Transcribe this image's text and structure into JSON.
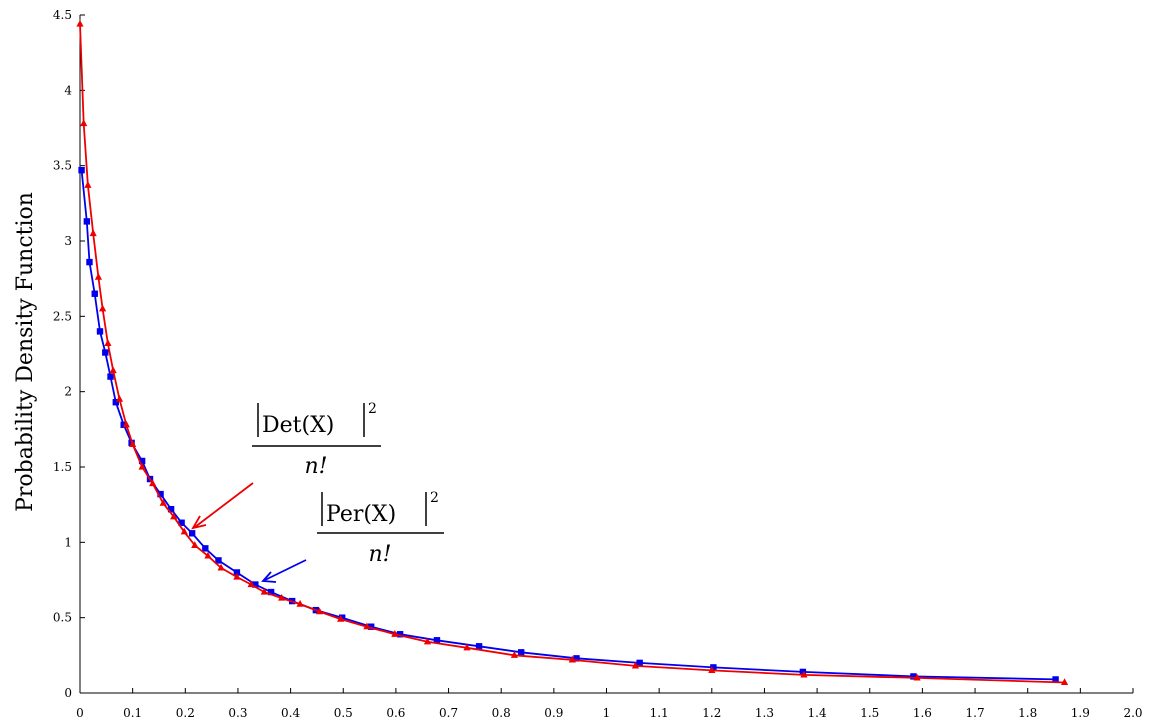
{
  "chart_data": {
    "type": "line",
    "title": "",
    "xlabel": "",
    "ylabel": "Probability Density Function",
    "xlim": [
      0,
      2.0
    ],
    "ylim": [
      0,
      4.5
    ],
    "xticks": [
      "0",
      "0.1",
      "0.2",
      "0.3",
      "0.4",
      "0.5",
      "0.6",
      "0.7",
      "0.8",
      "0.9",
      "1",
      "1.1",
      "1.2",
      "1.3",
      "1.4",
      "1.5",
      "1.6",
      "1.7",
      "1.8",
      "1.9",
      "2.0"
    ],
    "yticks": [
      "0",
      "0.5",
      "1",
      "1.5",
      "2",
      "2.5",
      "3",
      "3.5",
      "4",
      "4.5"
    ],
    "grid": false,
    "series": [
      {
        "name": "|Per(X)|^2 / n!",
        "color": "#0000ee",
        "marker": "square",
        "x": [
          0.003,
          0.013,
          0.018,
          0.028,
          0.038,
          0.048,
          0.058,
          0.068,
          0.083,
          0.098,
          0.118,
          0.133,
          0.153,
          0.173,
          0.193,
          0.213,
          0.238,
          0.263,
          0.298,
          0.333,
          0.363,
          0.403,
          0.448,
          0.498,
          0.553,
          0.608,
          0.678,
          0.758,
          0.838,
          0.943,
          1.063,
          1.203,
          1.373,
          1.583,
          1.853
        ],
        "y": [
          3.47,
          3.13,
          2.86,
          2.65,
          2.4,
          2.26,
          2.1,
          1.93,
          1.78,
          1.66,
          1.54,
          1.42,
          1.32,
          1.22,
          1.13,
          1.06,
          0.96,
          0.88,
          0.8,
          0.72,
          0.67,
          0.61,
          0.55,
          0.5,
          0.44,
          0.39,
          0.35,
          0.31,
          0.27,
          0.23,
          0.2,
          0.17,
          0.14,
          0.11,
          0.09
        ]
      },
      {
        "name": "|Det(X)|^2 / n!",
        "color": "#ee0000",
        "marker": "triangle",
        "x": [
          0.0,
          0.007,
          0.015,
          0.025,
          0.035,
          0.043,
          0.053,
          0.063,
          0.075,
          0.088,
          0.1,
          0.118,
          0.138,
          0.158,
          0.178,
          0.198,
          0.218,
          0.243,
          0.268,
          0.298,
          0.325,
          0.35,
          0.383,
          0.418,
          0.455,
          0.495,
          0.545,
          0.598,
          0.66,
          0.735,
          0.825,
          0.935,
          1.055,
          1.2,
          1.375,
          1.59,
          1.87
        ],
        "y": [
          4.44,
          3.78,
          3.37,
          3.05,
          2.76,
          2.55,
          2.32,
          2.14,
          1.95,
          1.78,
          1.65,
          1.5,
          1.39,
          1.26,
          1.17,
          1.07,
          0.98,
          0.91,
          0.83,
          0.77,
          0.72,
          0.67,
          0.63,
          0.59,
          0.54,
          0.49,
          0.44,
          0.39,
          0.34,
          0.3,
          0.25,
          0.22,
          0.18,
          0.15,
          0.12,
          0.1,
          0.07
        ]
      }
    ],
    "annotations": {
      "det": {
        "main": "Det(X)",
        "sup": "2",
        "denom": "n!"
      },
      "per": {
        "main": "Per(X)",
        "sup": "2",
        "denom": "n!"
      }
    }
  }
}
